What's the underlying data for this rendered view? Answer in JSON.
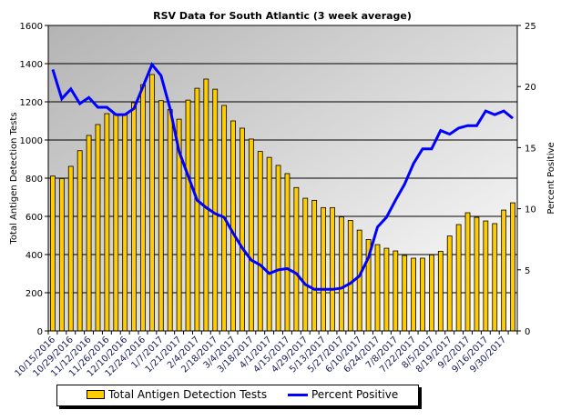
{
  "chart_data": {
    "type": "bar+line",
    "title": "RSV Data for South Atlantic (3 week average)",
    "ylabel": "Total Antigen Detection Tests",
    "y2label": "Percent Positive",
    "ylim": [
      0,
      1600
    ],
    "y2lim": [
      0,
      25
    ],
    "yticks": [
      0,
      200,
      400,
      600,
      800,
      1000,
      1200,
      1400,
      1600
    ],
    "y2ticks": [
      0,
      5,
      10,
      15,
      20,
      25
    ],
    "grid": true,
    "legend_position": "bottom",
    "x_tick_labels": [
      "10/15/2016",
      "10/29/2016",
      "11/12/2016",
      "11/26/2016",
      "12/10/2016",
      "12/24/2016",
      "1/7/2017",
      "1/21/2017",
      "2/4/2017",
      "2/18/2017",
      "3/4/2017",
      "3/18/2017",
      "4/1/2017",
      "4/15/2017",
      "4/29/2017",
      "5/13/2017",
      "5/27/2017",
      "6/10/2017",
      "6/24/2017",
      "7/8/2017",
      "7/22/2017",
      "8/5/2017",
      "8/19/2017",
      "9/2/2017",
      "9/16/2017",
      "9/30/2017"
    ],
    "series": [
      {
        "name": "Total Antigen Detection Tests",
        "type": "bar",
        "axis": "left",
        "color": "#FFCC00",
        "values": [
          811,
          798,
          862,
          944,
          1024,
          1081,
          1138,
          1135,
          1135,
          1195,
          1290,
          1343,
          1206,
          1159,
          1109,
          1209,
          1271,
          1319,
          1266,
          1181,
          1100,
          1062,
          1005,
          940,
          909,
          867,
          824,
          751,
          695,
          684,
          646,
          646,
          597,
          579,
          528,
          479,
          452,
          433,
          419,
          395,
          381,
          381,
          398,
          417,
          497,
          557,
          619,
          595,
          576,
          562,
          633,
          671
        ]
      },
      {
        "name": "Percent Positive",
        "type": "line",
        "axis": "right",
        "color": "#0000FF",
        "values": [
          21.4,
          19.0,
          19.8,
          18.6,
          19.1,
          18.3,
          18.3,
          17.7,
          17.7,
          18.2,
          20.0,
          21.8,
          20.9,
          18.2,
          14.7,
          12.7,
          10.7,
          10.1,
          9.6,
          9.3,
          8.0,
          6.8,
          5.8,
          5.4,
          4.7,
          5.0,
          5.1,
          4.7,
          3.8,
          3.4,
          3.4,
          3.4,
          3.5,
          3.9,
          4.5,
          6.0,
          8.5,
          9.3,
          10.7,
          12.0,
          13.7,
          14.9,
          14.9,
          16.4,
          16.1,
          16.6,
          16.8,
          16.8,
          18.0,
          17.7,
          18.0,
          17.4
        ]
      }
    ]
  }
}
